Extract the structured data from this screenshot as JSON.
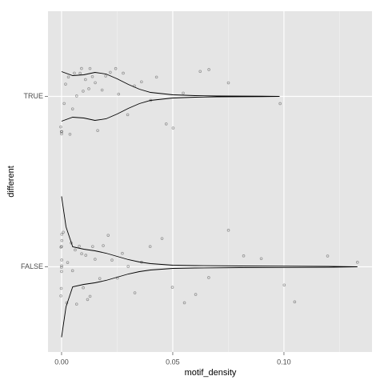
{
  "chart_data": {
    "type": "violin_jitter",
    "x_label": "motif_density",
    "y_label": "different",
    "categories": [
      "FALSE",
      "TRUE"
    ],
    "groups": [
      {
        "category": "FALSE",
        "points": [
          0,
          0,
          0,
          0,
          0,
          0,
          0,
          0,
          0,
          0,
          0.001,
          0.002,
          0.003,
          0.004,
          0.005,
          0.006,
          0.007,
          0.008,
          0.009,
          0.01,
          0.011,
          0.012,
          0.013,
          0.014,
          0.015,
          0.017,
          0.019,
          0.021,
          0.023,
          0.025,
          0.027,
          0.03,
          0.033,
          0.036,
          0.04,
          0.045,
          0.05,
          0.055,
          0.06,
          0.066,
          0.075,
          0.082,
          0.09,
          0.1,
          0.105,
          0.12,
          0.133
        ],
        "violin_x": [
          0,
          0.002,
          0.005,
          0.01,
          0.015,
          0.02,
          0.025,
          0.03,
          0.035,
          0.04,
          0.05,
          0.06,
          0.08,
          0.1,
          0.12,
          0.133
        ],
        "violin_width": [
          88,
          50,
          25,
          22,
          20,
          17,
          13,
          9,
          6,
          4,
          2,
          1.5,
          1,
          0.8,
          0.6,
          0
        ]
      },
      {
        "category": "TRUE",
        "points": [
          0,
          0,
          0,
          0,
          0.001,
          0.002,
          0.003,
          0.004,
          0.005,
          0.006,
          0.007,
          0.008,
          0.009,
          0.01,
          0.011,
          0.012,
          0.013,
          0.014,
          0.015,
          0.016,
          0.018,
          0.02,
          0.022,
          0.024,
          0.026,
          0.028,
          0.03,
          0.033,
          0.036,
          0.04,
          0.043,
          0.047,
          0.05,
          0.055,
          0.062,
          0.066,
          0.075,
          0.098
        ],
        "violin_x": [
          0,
          0.005,
          0.01,
          0.015,
          0.02,
          0.025,
          0.03,
          0.035,
          0.04,
          0.05,
          0.06,
          0.07,
          0.08,
          0.09,
          0.098
        ],
        "violin_width": [
          31,
          26,
          27,
          30,
          28,
          22,
          15,
          9,
          5,
          2,
          1,
          0.5,
          0.4,
          0.3,
          0
        ]
      }
    ],
    "xlim": [
      -0.0061,
      0.1396
    ],
    "xticks": [
      {
        "value": 0,
        "label": "0.00"
      },
      {
        "value": 0.05,
        "label": "0.05"
      },
      {
        "value": 0.1,
        "label": "0.10"
      }
    ],
    "minor_xticks": [
      0.025,
      0.075,
      0.125
    ],
    "grid": true,
    "point_color": "#000000",
    "line_color": "#000000",
    "panel_color": "#e5e5e5"
  }
}
